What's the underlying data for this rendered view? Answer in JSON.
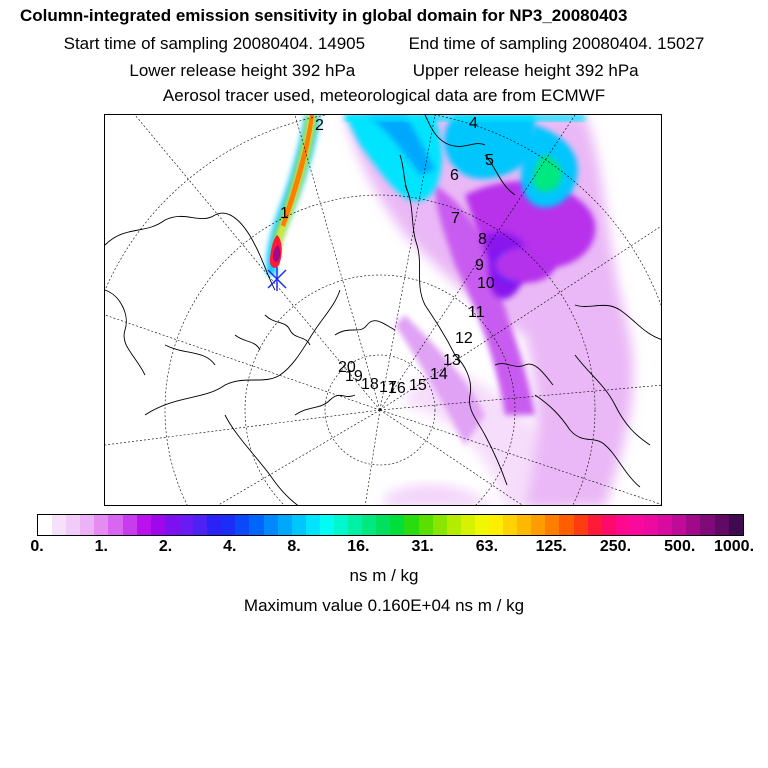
{
  "header": {
    "title": "Column-integrated emission sensitivity in global domain for NP3_20080403",
    "start_time": "Start time of sampling 20080404. 14905",
    "end_time": "End time of sampling 20080404. 15027",
    "lower_height": "Lower release height  392 hPa",
    "upper_height": "Upper release height  392 hPa",
    "info": "Aerosol tracer used, meteorological data are from ECMWF"
  },
  "map": {
    "projection": "north-polar-stereographic",
    "labels": [
      "1",
      "2",
      "4",
      "5",
      "6",
      "7",
      "8",
      "9",
      "10",
      "11",
      "12",
      "13",
      "14",
      "15",
      "16",
      "17",
      "18",
      "19",
      "20"
    ],
    "release_marker": "x-cross-icon"
  },
  "colorbar": {
    "tick_labels": [
      "0.",
      "1.",
      "2.",
      "4.",
      "8.",
      "16.",
      "31.",
      "63.",
      "125.",
      "250.",
      "500.",
      "1000."
    ],
    "colors": [
      "#ffffff",
      "#f6e1fb",
      "#f2ccf8",
      "#ebb3f5",
      "#e48cf2",
      "#d866f0",
      "#c93cee",
      "#b912ec",
      "#9f08ea",
      "#7d10ee",
      "#6a1af2",
      "#4c22f5",
      "#2b22f7",
      "#1a2ef8",
      "#0a48fa",
      "#0066fb",
      "#0088fc",
      "#00a8fd",
      "#00c6fe",
      "#00e4ff",
      "#00fcf2",
      "#00f7cd",
      "#00f0a6",
      "#00e880",
      "#00e05e",
      "#00de3a",
      "#28dc10",
      "#5ae000",
      "#8ae600",
      "#b4ec00",
      "#d6f200",
      "#f0f800",
      "#ffee00",
      "#ffd200",
      "#ffb800",
      "#ff9c00",
      "#ff7e00",
      "#ff5e00",
      "#ff3c10",
      "#ff1a38",
      "#ff0a6a",
      "#ff0a8c",
      "#fa0a9c",
      "#ec0aa0",
      "#d80aa0",
      "#c00a98",
      "#a00a88",
      "#800a78",
      "#600a66",
      "#400a50"
    ],
    "unit": "ns m / kg"
  },
  "max_value": "Maximum value  0.160E+04 ns m / kg"
}
